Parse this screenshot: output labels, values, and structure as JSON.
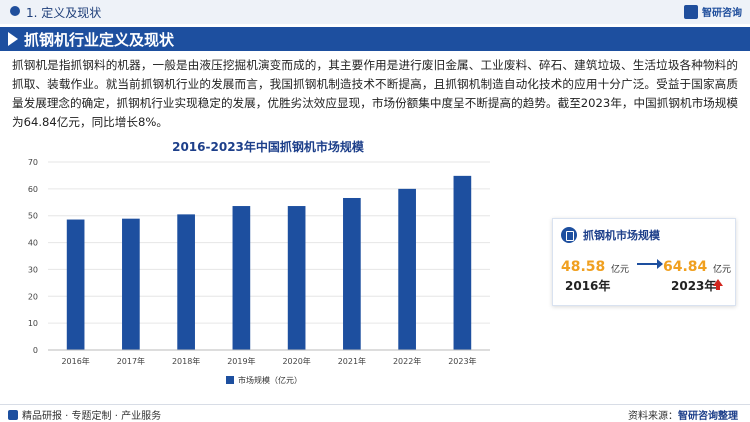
{
  "header": {
    "section": "1. 定义及现状",
    "logo": "智研咨询"
  },
  "banner": {
    "title": "抓钢机行业定义及现状"
  },
  "intro": "抓钢机是指抓钢料的机器，一般是由液压挖掘机演变而成的，其主要作用是进行废旧金属、工业废料、碎石、建筑垃圾、生活垃圾各种物料的抓取、装载作业。就当前抓钢机行业的发展而言，我国抓钢机制造技术不断提高，且抓钢机制造自动化技术的应用十分广泛。受益于国家高质量发展理念的确定，抓钢机行业实现稳定的发展，优胜劣汰效应显现，市场份额集中度呈不断提高的趋势。截至2023年，中国抓钢机市场规模为64.84亿元，同比增长8%。",
  "card": {
    "title": "抓钢机市场规模",
    "value_start": "48.58",
    "unit_start": "亿元",
    "year_start": "2016年",
    "value_end": "64.84",
    "unit_end": "亿元",
    "year_end": "2023年"
  },
  "footer": {
    "left": "精品研报 · 专题定制 · 产业服务",
    "source_label": "资料来源：",
    "source_brand": "智研咨询整理"
  },
  "chart_data": {
    "type": "bar",
    "title": "2016-2023年中国抓钢机市场规模",
    "categories": [
      "2016年",
      "2017年",
      "2018年",
      "2019年",
      "2020年",
      "2021年",
      "2022年",
      "2023年"
    ],
    "series": [
      {
        "name": "市场规模（亿元）",
        "values": [
          48.58,
          48.9,
          50.5,
          53.6,
          53.6,
          56.6,
          60.0,
          64.84
        ]
      }
    ],
    "ylim": [
      0,
      70
    ],
    "yticks": [
      0,
      10,
      20,
      30,
      40,
      50,
      60,
      70
    ],
    "grid": true,
    "legend": "bottom",
    "bar_color": "#1d4f9f"
  }
}
